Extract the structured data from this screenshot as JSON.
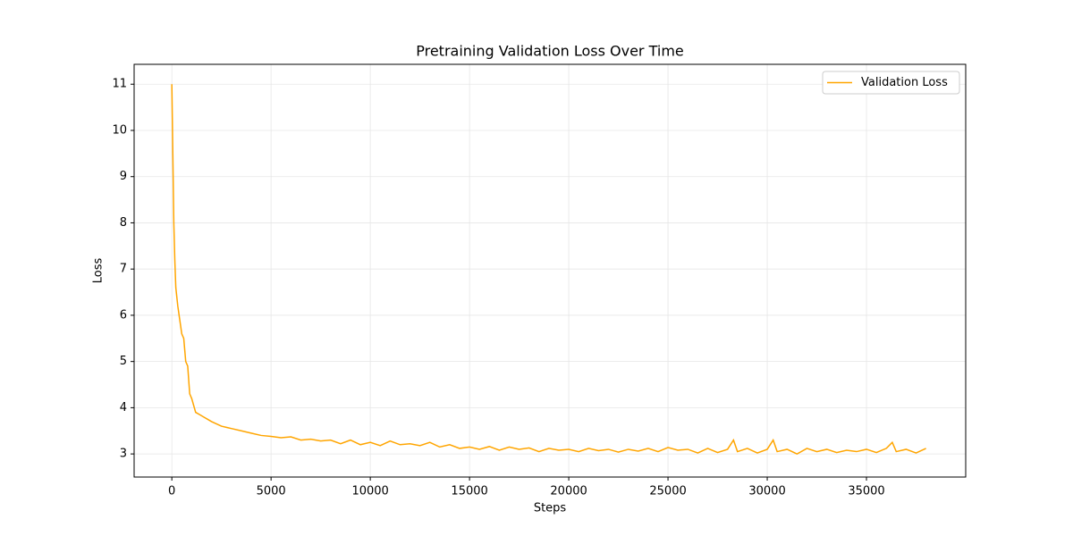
{
  "chart_data": {
    "type": "line",
    "title": "Pretraining Validation Loss Over Time",
    "xlabel": "Steps",
    "ylabel": "Loss",
    "x": [
      0,
      50,
      100,
      150,
      200,
      300,
      400,
      500,
      600,
      700,
      800,
      900,
      1000,
      1200,
      1400,
      1600,
      1800,
      2000,
      2500,
      3000,
      3500,
      4000,
      4500,
      5000,
      5500,
      6000,
      6500,
      7000,
      7500,
      8000,
      8500,
      9000,
      9500,
      10000,
      10500,
      11000,
      11500,
      12000,
      12500,
      13000,
      13500,
      14000,
      14500,
      15000,
      15500,
      16000,
      16500,
      17000,
      17500,
      18000,
      18500,
      19000,
      19500,
      20000,
      20500,
      21000,
      21500,
      22000,
      22500,
      23000,
      23500,
      24000,
      24500,
      25000,
      25500,
      26000,
      26500,
      27000,
      27500,
      28000,
      28300,
      28500,
      29000,
      29500,
      30000,
      30300,
      30500,
      31000,
      31500,
      32000,
      32500,
      33000,
      33500,
      34000,
      34500,
      35000,
      35500,
      36000,
      36300,
      36500,
      37000,
      37500,
      38000
    ],
    "series": [
      {
        "name": "Validation Loss",
        "color": "#ffa500",
        "values": [
          11.0,
          9.5,
          8.0,
          7.2,
          6.6,
          6.2,
          5.9,
          5.6,
          5.5,
          5.0,
          4.9,
          4.3,
          4.2,
          3.9,
          3.85,
          3.8,
          3.75,
          3.7,
          3.6,
          3.55,
          3.5,
          3.45,
          3.4,
          3.38,
          3.35,
          3.37,
          3.3,
          3.32,
          3.28,
          3.3,
          3.22,
          3.3,
          3.2,
          3.25,
          3.18,
          3.28,
          3.2,
          3.22,
          3.18,
          3.25,
          3.15,
          3.2,
          3.12,
          3.15,
          3.1,
          3.16,
          3.08,
          3.15,
          3.1,
          3.13,
          3.05,
          3.12,
          3.08,
          3.1,
          3.05,
          3.12,
          3.07,
          3.1,
          3.04,
          3.1,
          3.06,
          3.12,
          3.05,
          3.14,
          3.08,
          3.1,
          3.02,
          3.12,
          3.03,
          3.1,
          3.3,
          3.05,
          3.12,
          3.02,
          3.1,
          3.3,
          3.05,
          3.1,
          3.0,
          3.12,
          3.05,
          3.1,
          3.03,
          3.08,
          3.05,
          3.1,
          3.03,
          3.12,
          3.25,
          3.05,
          3.1,
          3.02,
          3.12
        ]
      }
    ],
    "xlim": [
      -1900,
      40000
    ],
    "ylim": [
      2.5,
      11.43
    ],
    "xticks": [
      0,
      5000,
      10000,
      15000,
      20000,
      25000,
      30000,
      35000
    ],
    "yticks": [
      3,
      4,
      5,
      6,
      7,
      8,
      9,
      10,
      11
    ],
    "grid": true,
    "legend": "upper right"
  }
}
